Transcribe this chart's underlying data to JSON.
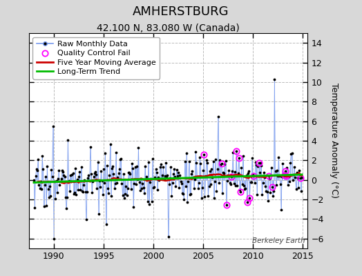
{
  "title": "AMHERSTBURG",
  "subtitle": "42.100 N, 83.080 W (Canada)",
  "ylabel": "Temperature Anomaly (°C)",
  "watermark": "Berkeley Earth",
  "xlim": [
    1987.5,
    2015.5
  ],
  "ylim": [
    -7,
    15
  ],
  "yticks": [
    -6,
    -4,
    -2,
    0,
    2,
    4,
    6,
    8,
    10,
    12,
    14
  ],
  "xticks": [
    1990,
    1995,
    2000,
    2005,
    2010,
    2015
  ],
  "bg_color": "#d8d8d8",
  "plot_bg": "#ffffff",
  "raw_line_color": "#7799ee",
  "raw_dot_color": "#000000",
  "ma_color": "#cc0000",
  "trend_color": "#00bb00",
  "qc_color": "#ff00ff",
  "legend_fontsize": 8,
  "title_fontsize": 13,
  "subtitle_fontsize": 10,
  "tick_labelsize": 9,
  "ylabel_fontsize": 9
}
